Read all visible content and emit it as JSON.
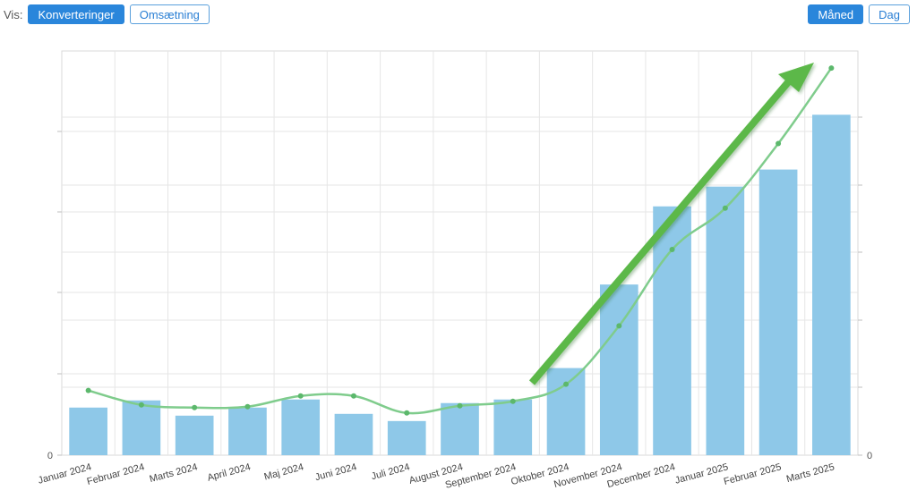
{
  "toolbar": {
    "vis_label": "Vis:",
    "metric_buttons": [
      "Konverteringer",
      "Omsætning"
    ],
    "active_metric": "Konverteringer",
    "period_buttons": [
      "Måned",
      "Dag"
    ],
    "active_period": "Måned"
  },
  "colors": {
    "bar": "#8ec8e8",
    "line": "#7fcc8c",
    "point": "#5cb86c",
    "arrow": "#5cb84a",
    "active_button": "#2a86db",
    "grid": "#e6e6e6"
  },
  "chart_data": {
    "type": "bar",
    "categories": [
      "Januar 2024",
      "Februar 2024",
      "Marts 2024",
      "April 2024",
      "Maj 2024",
      "Juni 2024",
      "Juli 2024",
      "August 2024",
      "September 2024",
      "Oktober 2024",
      "November 2024",
      "December 2024",
      "Januar 2025",
      "Februar 2025",
      "Marts 2025"
    ],
    "series": [
      {
        "values": [
          53,
          61,
          44,
          53,
          62,
          46,
          38,
          58,
          62,
          97,
          190,
          277,
          299,
          318,
          379
        ],
        "axis": "left",
        "kind": "bar"
      },
      {
        "values": [
          72,
          56,
          53,
          54,
          66,
          66,
          47,
          55,
          60,
          79,
          144,
          229,
          275,
          347,
          431
        ],
        "axis": "right",
        "kind": "line"
      }
    ],
    "left_axis": {
      "tick_label": "0"
    },
    "right_axis": {
      "tick_label": "0"
    },
    "ylim": [
      0,
      450
    ],
    "grid": true,
    "annotation": "green upward trend arrow"
  }
}
